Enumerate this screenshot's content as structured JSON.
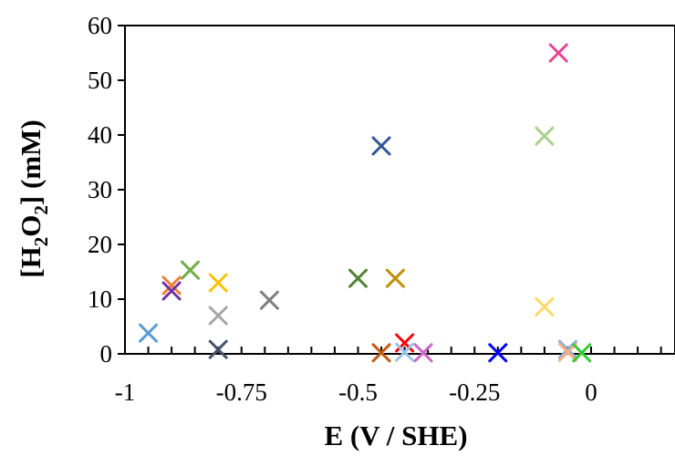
{
  "chart_data": {
    "type": "scatter",
    "title": "",
    "xlabel": "E (V / SHE)",
    "ylabel_parts": [
      "[H",
      "2",
      "O",
      "2",
      "] (mM)"
    ],
    "xlim": [
      -1,
      0.18
    ],
    "ylim": [
      0,
      60
    ],
    "x_ticks": [
      -1,
      -0.75,
      -0.5,
      -0.25,
      0
    ],
    "x_tick_labels": [
      "-1",
      "-0.75",
      "-0.5",
      "-0.25",
      "0"
    ],
    "y_ticks": [
      0,
      10,
      20,
      30,
      40,
      50,
      60
    ],
    "y_tick_labels": [
      "0",
      "10",
      "20",
      "30",
      "40",
      "50",
      "60"
    ],
    "x_minor_step": 0.05,
    "grid": false,
    "legend": "none",
    "marker": "x",
    "points": [
      {
        "x": -0.95,
        "y": 3.8,
        "color": "#5b9bd5"
      },
      {
        "x": -0.9,
        "y": 12.5,
        "color": "#ed7d31"
      },
      {
        "x": -0.9,
        "y": 11.5,
        "color": "#7030a0"
      },
      {
        "x": -0.86,
        "y": 15.3,
        "color": "#70ad47"
      },
      {
        "x": -0.8,
        "y": 13.0,
        "color": "#ffc000"
      },
      {
        "x": -0.8,
        "y": 7.0,
        "color": "#a5a5a5"
      },
      {
        "x": -0.8,
        "y": 0.8,
        "color": "#44546a"
      },
      {
        "x": -0.69,
        "y": 9.8,
        "color": "#7f7f7f"
      },
      {
        "x": -0.5,
        "y": 13.8,
        "color": "#548235"
      },
      {
        "x": -0.45,
        "y": 38.0,
        "color": "#2f5597"
      },
      {
        "x": -0.45,
        "y": 0.2,
        "color": "#c55a11"
      },
      {
        "x": -0.42,
        "y": 13.8,
        "color": "#bf9000"
      },
      {
        "x": -0.4,
        "y": 2.0,
        "color": "#ff0000"
      },
      {
        "x": -0.4,
        "y": 0.3,
        "color": "#9dc3e6"
      },
      {
        "x": -0.36,
        "y": 0.2,
        "color": "#cc66cc"
      },
      {
        "x": -0.2,
        "y": 0.2,
        "color": "#0000ff"
      },
      {
        "x": -0.1,
        "y": 39.8,
        "color": "#a9d18e"
      },
      {
        "x": -0.1,
        "y": 8.6,
        "color": "#ffd966"
      },
      {
        "x": -0.07,
        "y": 55.0,
        "color": "#e84393"
      },
      {
        "x": -0.05,
        "y": 0.8,
        "color": "#8faadc"
      },
      {
        "x": -0.05,
        "y": 0.3,
        "color": "#f4b183"
      },
      {
        "x": -0.02,
        "y": 0.2,
        "color": "#33cc33"
      }
    ]
  }
}
